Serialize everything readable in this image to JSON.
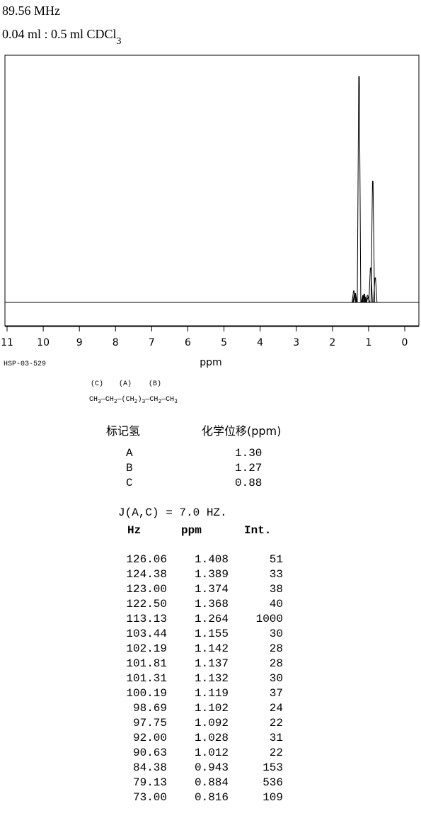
{
  "header": {
    "frequency": "89.56 MHz",
    "sample": "0.04 ml : 0.5 ml CDCl",
    "sample_subscript": "3"
  },
  "chart_data": {
    "type": "spectrum",
    "xlabel": "ppm",
    "code": "HSP-03-529",
    "xlim": [
      11,
      0
    ],
    "xticks": [
      11,
      10,
      9,
      8,
      7,
      6,
      5,
      4,
      3,
      2,
      1,
      0
    ],
    "color": "#000000"
  },
  "structure": {
    "labels": [
      "(C)",
      "(A)",
      "(B)"
    ],
    "formula": [
      "CH",
      "3",
      "—CH",
      "2",
      "—(CH",
      "2",
      ")",
      "3",
      "—CH",
      "2",
      "—CH",
      "3"
    ]
  },
  "assignments": {
    "header": [
      "标记氢",
      "化学位移(ppm)"
    ],
    "rows": [
      [
        "A",
        "1.30"
      ],
      [
        "B",
        "1.27"
      ],
      [
        "C",
        "0.88"
      ]
    ]
  },
  "coupling": "J(A,C) = 7.0 HZ.",
  "peaks": {
    "header": [
      "Hz",
      "ppm",
      "Int."
    ],
    "rows": [
      [
        "126.06",
        "1.408",
        "51"
      ],
      [
        "124.38",
        "1.389",
        "33"
      ],
      [
        "123.00",
        "1.374",
        "38"
      ],
      [
        "122.50",
        "1.368",
        "40"
      ],
      [
        "113.13",
        "1.264",
        "1000"
      ],
      [
        "103.44",
        "1.155",
        "30"
      ],
      [
        "102.19",
        "1.142",
        "28"
      ],
      [
        "101.81",
        "1.137",
        "28"
      ],
      [
        "101.31",
        "1.132",
        "30"
      ],
      [
        "100.19",
        "1.119",
        "37"
      ],
      [
        "98.69",
        "1.102",
        "24"
      ],
      [
        "97.75",
        "1.092",
        "22"
      ],
      [
        "92.00",
        "1.028",
        "31"
      ],
      [
        "90.63",
        "1.012",
        "22"
      ],
      [
        "84.38",
        "0.943",
        "153"
      ],
      [
        "79.13",
        "0.884",
        "536"
      ],
      [
        "73.00",
        "0.816",
        "109"
      ]
    ]
  }
}
